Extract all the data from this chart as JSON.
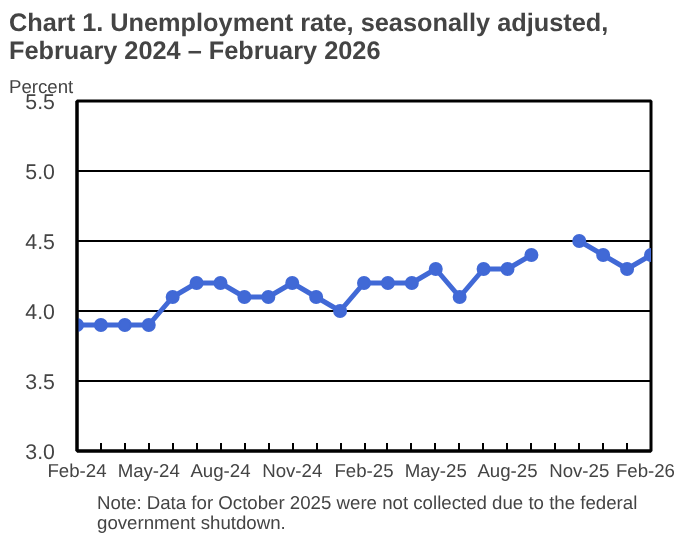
{
  "chart_data": {
    "type": "line",
    "title": "Chart 1. Unemployment rate, seasonally adjusted,\nFebruary 2024 – February 2026",
    "ylabel": "Percent",
    "categories": [
      "Feb-24",
      null,
      null,
      "May-24",
      null,
      null,
      "Aug-24",
      null,
      null,
      "Nov-24",
      null,
      null,
      "Feb-25",
      null,
      null,
      "May-25",
      null,
      null,
      "Aug-25",
      null,
      null,
      "Nov-25",
      null,
      null,
      "Feb-26"
    ],
    "series": [
      {
        "color": "#4169d6",
        "values": [
          3.9,
          3.9,
          3.9,
          3.9,
          4.1,
          4.2,
          4.2,
          4.1,
          4.1,
          4.2,
          4.1,
          4.0,
          4.2,
          4.2,
          4.2,
          4.3,
          4.1,
          4.3,
          4.3,
          4.4,
          null,
          4.5,
          4.4,
          4.3,
          4.4
        ]
      }
    ],
    "ylim": [
      3.0,
      5.5
    ],
    "yticks": [
      {
        "value": 3.0,
        "label": "3.0"
      },
      {
        "value": 3.5,
        "label": "3.5"
      },
      {
        "value": 4.0,
        "label": "4.0"
      },
      {
        "value": 4.5,
        "label": "4.5"
      },
      {
        "value": 5.0,
        "label": "5.0"
      },
      {
        "value": 5.5,
        "label": "5.5"
      }
    ],
    "grid": "y",
    "marker": "circle",
    "line_style": "solid",
    "annotations": [
      "Note: Data for October 2025 were not collected due to the federal\ngovernment shutdown."
    ]
  }
}
